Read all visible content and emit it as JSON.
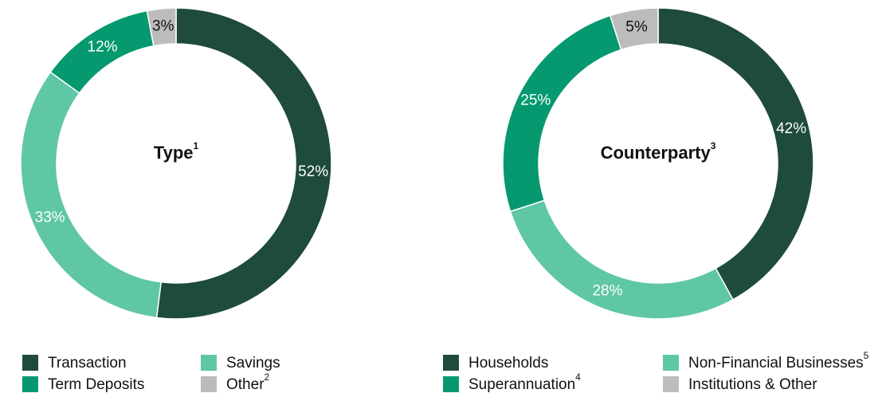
{
  "chart_data": [
    {
      "type": "pie",
      "title": "Type",
      "title_note": "1",
      "categories": [
        "Transaction",
        "Savings",
        "Term Deposits",
        "Other"
      ],
      "category_notes": [
        null,
        null,
        null,
        "2"
      ],
      "values": [
        52,
        33,
        12,
        3
      ],
      "value_labels": [
        "52%",
        "33%",
        "12%",
        "3%"
      ],
      "colors": [
        "#1e4b3c",
        "#5fc6a6",
        "#06996f",
        "#bcbcbc"
      ]
    },
    {
      "type": "pie",
      "title": "Counterparty",
      "title_note": "3",
      "categories": [
        "Households",
        "Non-Financial Businesses",
        "Superannuation",
        "Institutions & Other"
      ],
      "category_notes": [
        null,
        "5",
        "4",
        null
      ],
      "values": [
        42,
        28,
        25,
        5
      ],
      "value_labels": [
        "42%",
        "28%",
        "25%",
        "5%"
      ],
      "colors": [
        "#1e4b3c",
        "#5fc6a6",
        "#06996f",
        "#bcbcbc"
      ]
    }
  ]
}
